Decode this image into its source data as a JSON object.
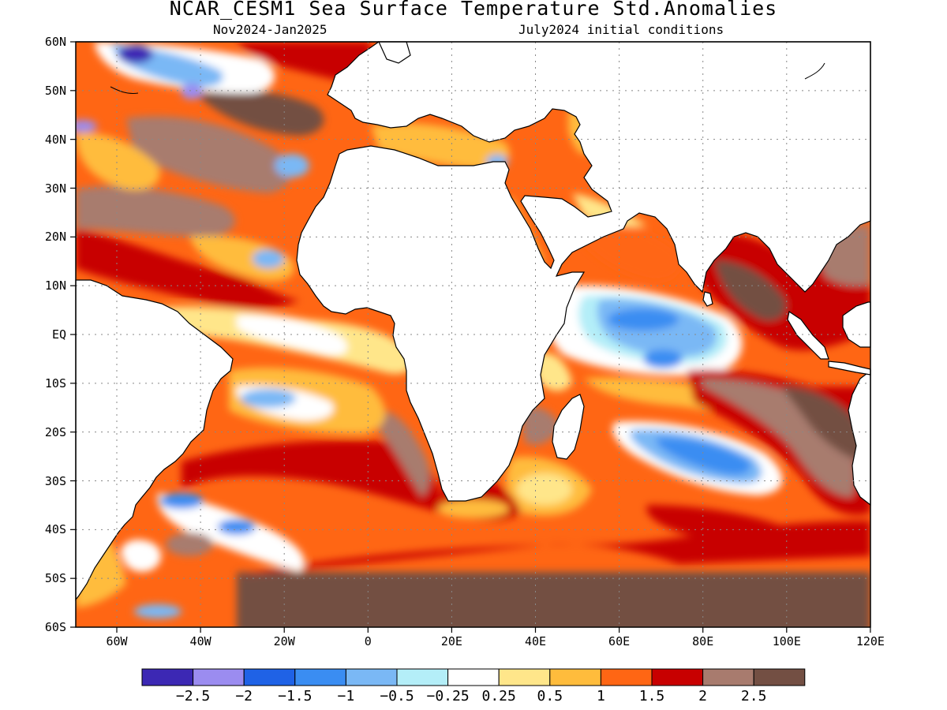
{
  "title": "NCAR_CESM1 Sea Surface Temperature Std.Anomalies",
  "subtitle_left": "Nov2024-Jan2025",
  "subtitle_right": "July2024 initial conditions",
  "lat_labels": [
    "60N",
    "50N",
    "40N",
    "30N",
    "20N",
    "10N",
    "EQ",
    "10S",
    "20S",
    "30S",
    "40S",
    "50S",
    "60S"
  ],
  "lon_labels": [
    "60W",
    "40W",
    "20W",
    "0",
    "20E",
    "40E",
    "60E",
    "80E",
    "100E",
    "120E"
  ],
  "colorbar": {
    "colors": [
      "#3c28b4",
      "#9b8cf0",
      "#1f62e6",
      "#3a8df2",
      "#7ab8f5",
      "#b4eef8",
      "#ffffff",
      "#ffe68a",
      "#ffbc3c",
      "#ff6614",
      "#c80000",
      "#a87b6e",
      "#734f43"
    ],
    "labels": [
      "-2.5",
      "-2",
      "-1.5",
      "-1",
      "-0.5",
      "-0.25",
      "0.25",
      "0.5",
      "1",
      "1.5",
      "2",
      "2.5"
    ]
  }
}
